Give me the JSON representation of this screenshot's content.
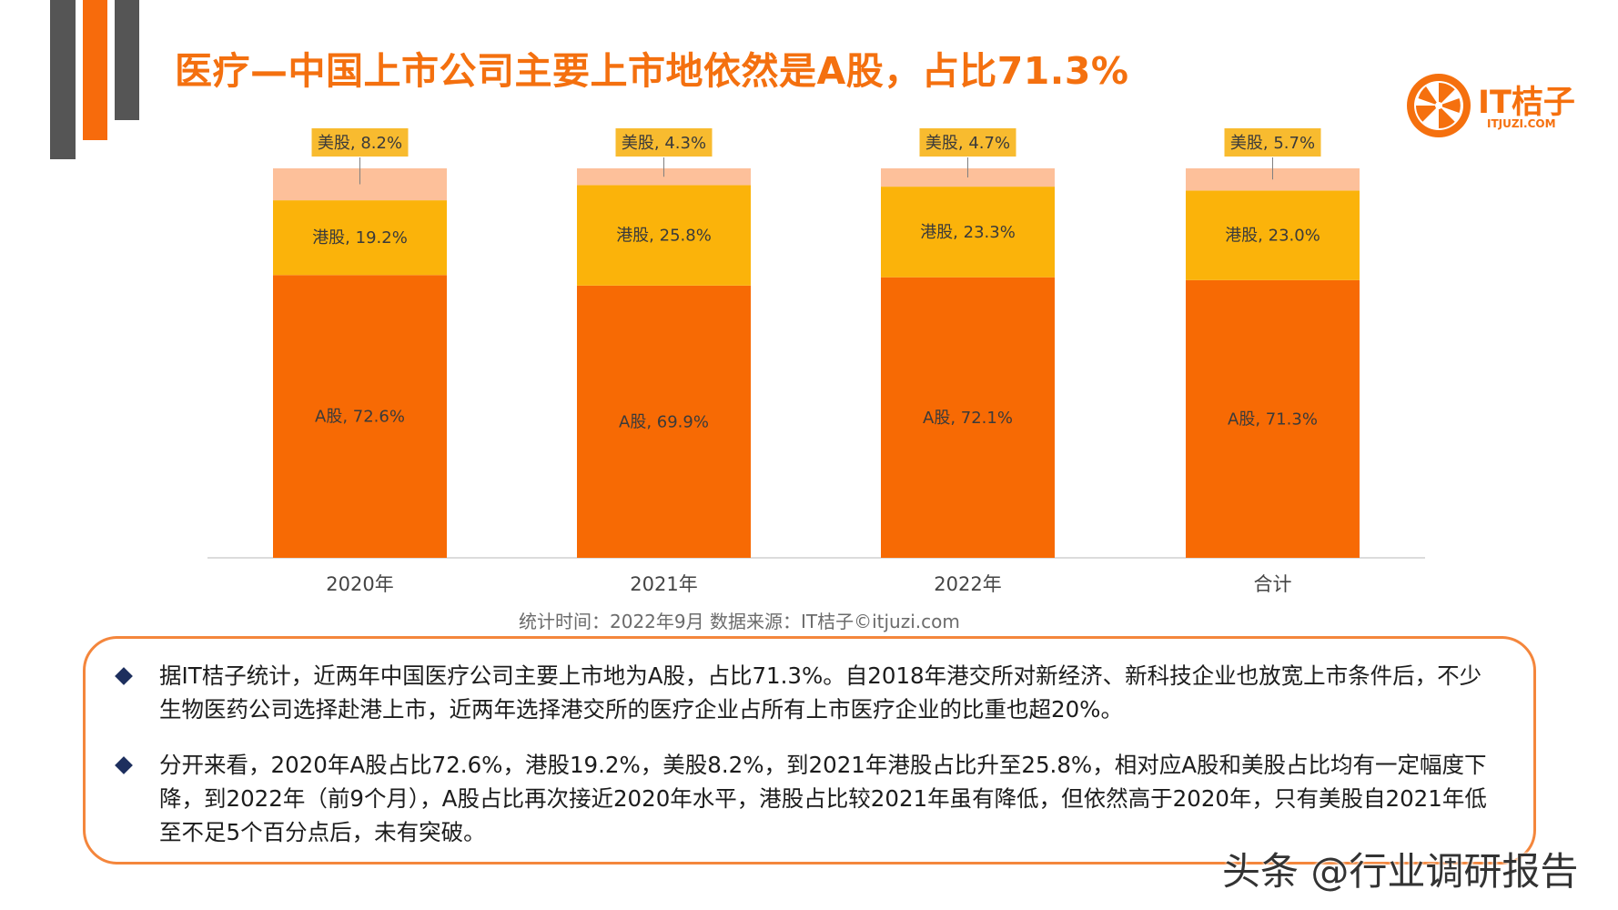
{
  "title": "医疗—中国上市公司主要上市地依然是A股，占比71.3%",
  "logo": {
    "text": "IT桔子",
    "sub": "ITJUZI.COM"
  },
  "colors": {
    "a": "#f76a04",
    "hk": "#fbb30a",
    "us": "#fdc09a",
    "callout": "#f8bb2f"
  },
  "chart_data": {
    "type": "bar",
    "stacked": true,
    "categories": [
      "2020年",
      "2021年",
      "2022年",
      "合计"
    ],
    "series": [
      {
        "name": "A股",
        "values": [
          72.6,
          69.9,
          72.1,
          71.3
        ],
        "labels": [
          "A股, 72.6%",
          "A股, 69.9%",
          "A股, 72.1%",
          "A股, 71.3%"
        ]
      },
      {
        "name": "港股",
        "values": [
          19.2,
          25.8,
          23.3,
          23.0
        ],
        "labels": [
          "港股, 19.2%",
          "港股, 25.8%",
          "港股, 23.3%",
          "港股, 23.0%"
        ]
      },
      {
        "name": "美股",
        "values": [
          8.2,
          4.3,
          4.7,
          5.7
        ],
        "labels": [
          "美股, 8.2%",
          "美股, 4.3%",
          "美股, 4.7%",
          "美股, 5.7%"
        ]
      }
    ],
    "ylim": [
      0,
      100
    ]
  },
  "source": "统计时间：2022年9月   数据来源：IT桔子©itjuzi.com",
  "notes": [
    "据IT桔子统计，近两年中国医疗公司主要上市地为A股，占比71.3%。自2018年港交所对新经济、新科技企业也放宽上市条件后，不少生物医药公司选择赴港上市，近两年选择港交所的医疗企业占所有上市医疗企业的比重也超20%。",
    "分开来看，2020年A股占比72.6%，港股19.2%，美股8.2%，到2021年港股占比升至25.8%，相对应A股和美股占比均有一定幅度下降，到2022年（前9个月），A股占比再次接近2020年水平，港股占比较2021年虽有降低，但依然高于2020年，只有美股自2021年低至不足5个百分点后，未有突破。"
  ],
  "watermark": "头条 @行业调研报告"
}
